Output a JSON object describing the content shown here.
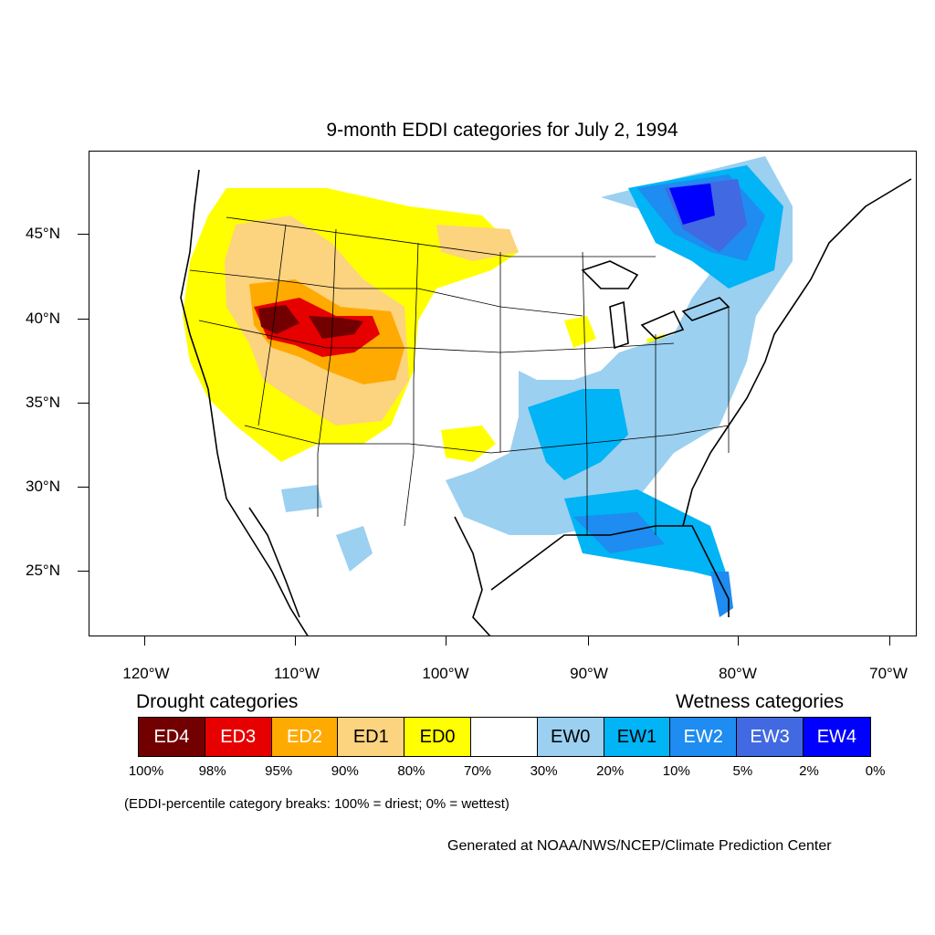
{
  "title": "9-month EDDI categories for July 2, 1994",
  "axes": {
    "lat_labels": [
      "45°N",
      "40°N",
      "35°N",
      "30°N",
      "25°N"
    ],
    "lon_labels": [
      "120°W",
      "110°W",
      "100°W",
      "90°W",
      "80°W",
      "70°W"
    ]
  },
  "legend": {
    "drought_heading": "Drought categories",
    "wetness_heading": "Wetness categories",
    "categories": [
      {
        "label": "ED4",
        "color": "#730000",
        "text_color": "#ffffff"
      },
      {
        "label": "ED3",
        "color": "#e60000",
        "text_color": "#ffffff"
      },
      {
        "label": "ED2",
        "color": "#ffaa00",
        "text_color": "#ffffff"
      },
      {
        "label": "ED1",
        "color": "#fcd37f",
        "text_color": "#000000"
      },
      {
        "label": "ED0",
        "color": "#ffff00",
        "text_color": "#000000"
      },
      {
        "label": "",
        "color": "#ffffff",
        "text_color": "#000000"
      },
      {
        "label": "EW0",
        "color": "#9bd0f0",
        "text_color": "#000000"
      },
      {
        "label": "EW1",
        "color": "#00b4f5",
        "text_color": "#000000"
      },
      {
        "label": "EW2",
        "color": "#1e8cf0",
        "text_color": "#ffffff"
      },
      {
        "label": "EW3",
        "color": "#4169e1",
        "text_color": "#ffffff"
      },
      {
        "label": "EW4",
        "color": "#0000ff",
        "text_color": "#ffffff"
      }
    ],
    "percentiles": [
      "100%",
      "98%",
      "95%",
      "90%",
      "80%",
      "70%",
      "30%",
      "20%",
      "10%",
      "5%",
      "2%",
      "0%"
    ]
  },
  "note": "(EDDI-percentile category breaks: 100% = driest; 0% = wettest)",
  "credit": "Generated at NOAA/NWS/NCEP/Climate Prediction Center"
}
